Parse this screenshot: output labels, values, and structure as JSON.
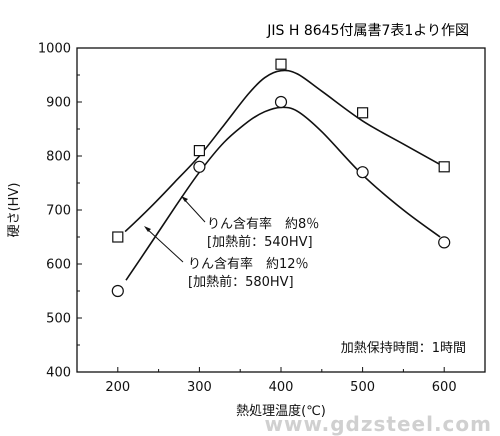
{
  "chart_data": {
    "type": "line",
    "title": "JIS H 8645付属書7表1より作図",
    "xlabel": "熱処理温度(℃)",
    "ylabel": "硬さ(HV)",
    "xlim": [
      150,
      650
    ],
    "ylim": [
      400,
      1000
    ],
    "x_ticks": [
      "200",
      "300",
      "400",
      "500",
      "600"
    ],
    "y_ticks": [
      "400",
      "500",
      "600",
      "700",
      "800",
      "900",
      "1000"
    ],
    "series": [
      {
        "marker": "square",
        "points": [
          [
            200,
            650
          ],
          [
            300,
            810
          ],
          [
            400,
            970
          ],
          [
            500,
            880
          ],
          [
            600,
            780
          ]
        ],
        "curve": [
          [
            209,
            660
          ],
          [
            240,
            705
          ],
          [
            270,
            752
          ],
          [
            300,
            800
          ],
          [
            330,
            857
          ],
          [
            360,
            915
          ],
          [
            380,
            945
          ],
          [
            400,
            958
          ],
          [
            420,
            952
          ],
          [
            450,
            920
          ],
          [
            500,
            865
          ],
          [
            550,
            822
          ],
          [
            600,
            780
          ]
        ],
        "labels": [
          "りん含有率　約8％",
          "[加熱前：540HV]"
        ]
      },
      {
        "marker": "circle",
        "points": [
          [
            200,
            550
          ],
          [
            300,
            780
          ],
          [
            400,
            900
          ],
          [
            500,
            770
          ],
          [
            600,
            640
          ]
        ],
        "curve": [
          [
            210,
            570
          ],
          [
            240,
            637
          ],
          [
            270,
            705
          ],
          [
            300,
            770
          ],
          [
            330,
            825
          ],
          [
            360,
            864
          ],
          [
            380,
            882
          ],
          [
            400,
            890
          ],
          [
            420,
            883
          ],
          [
            450,
            845
          ],
          [
            500,
            765
          ],
          [
            550,
            700
          ],
          [
            595,
            650
          ]
        ],
        "labels": [
          "りん含有率　約12％",
          "[加熱前：580HV]"
        ]
      }
    ],
    "annotations": [
      "加熱保持時間：1時間"
    ],
    "grid": false,
    "legend": "none"
  },
  "watermark": "www.gdzsteel.com"
}
